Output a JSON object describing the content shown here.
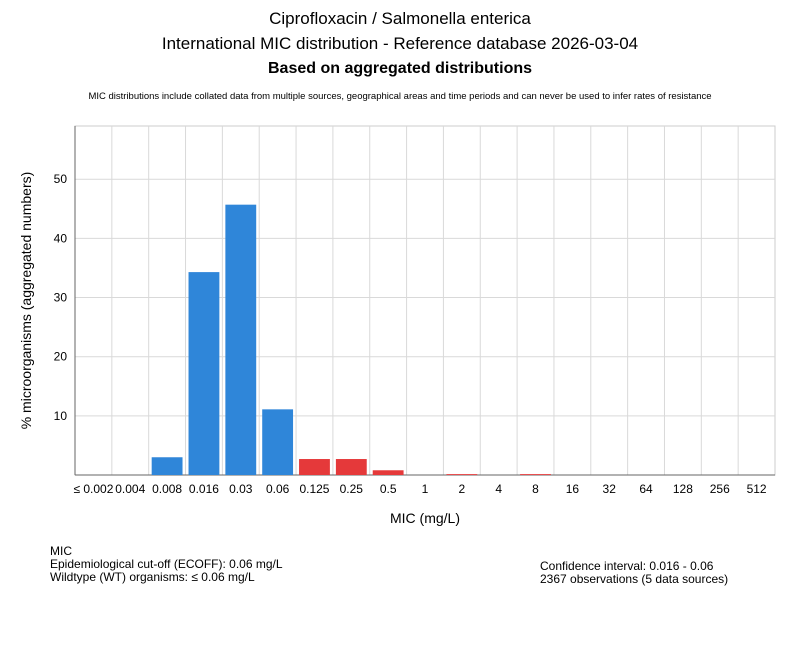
{
  "header": {
    "title": "Ciprofloxacin / Salmonella enterica",
    "subtitle": "International MIC distribution - Reference database 2026-03-04",
    "subtitle2": "Based on aggregated distributions",
    "disclaimer": "MIC distributions include collated data from multiple sources, geographical areas and time periods and can never be used to infer rates of resistance"
  },
  "chart_data": {
    "type": "bar",
    "xlabel": "MIC (mg/L)",
    "ylabel": "% microorganisms (aggregated numbers)",
    "ylim": [
      0,
      59
    ],
    "yticks": [
      10,
      20,
      30,
      40,
      50
    ],
    "grid": true,
    "categories": [
      "≤ 0.002",
      "0.004",
      "0.008",
      "0.016",
      "0.03",
      "0.06",
      "0.125",
      "0.25",
      "0.5",
      "1",
      "2",
      "4",
      "8",
      "16",
      "32",
      "64",
      "128",
      "256",
      "512"
    ],
    "values": [
      0,
      0,
      3.0,
      34.3,
      45.7,
      11.1,
      2.7,
      2.7,
      0.8,
      0,
      0.15,
      0,
      0.15,
      0,
      0,
      0,
      0,
      0,
      0
    ],
    "colors": {
      "wildtype": "#2f86d9",
      "non_wildtype": "#e5393a"
    },
    "ecoff_index": 5
  },
  "footer": {
    "left": {
      "heading": "MIC",
      "ecoff": "Epidemiological cut-off (ECOFF): 0.06 mg/L",
      "wildtype": "Wildtype (WT) organisms: ≤ 0.06 mg/L"
    },
    "right": {
      "ci": "Confidence interval: 0.016 - 0.06",
      "observations": "2367 observations (5 data sources)"
    }
  }
}
